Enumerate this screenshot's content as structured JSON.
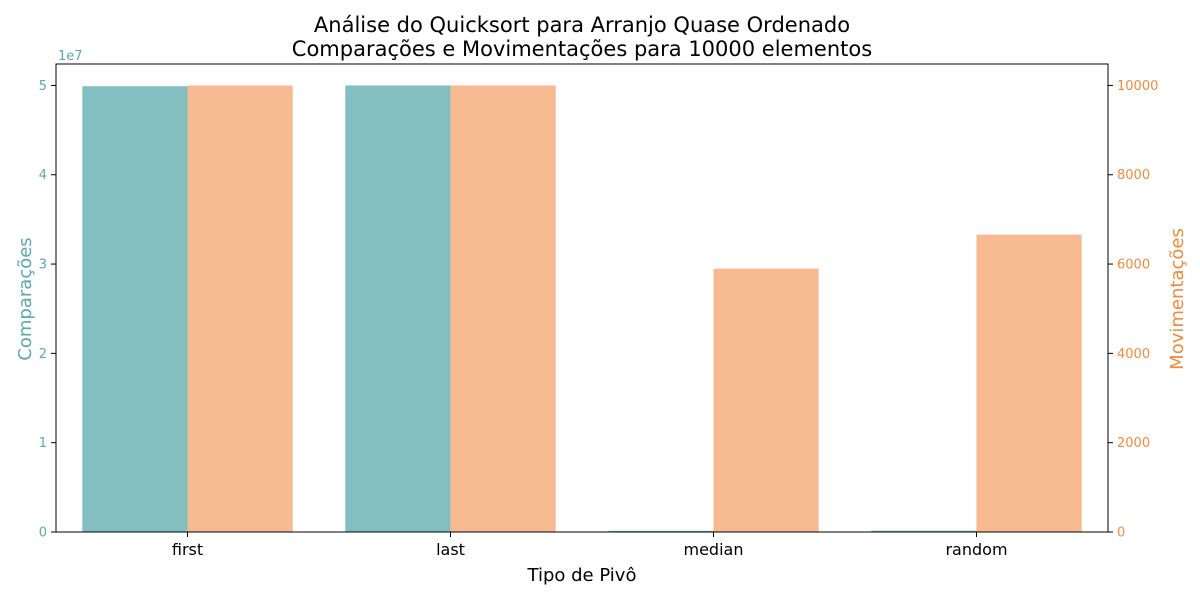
{
  "chart_data": {
    "type": "bar",
    "title": "Análise do Quicksort para Arranjo Quase Ordenado",
    "subtitle": "Comparações e Movimentações para 10000 elementos",
    "xlabel": "Tipo de Pivô",
    "categories": [
      "first",
      "last",
      "median",
      "random"
    ],
    "series": [
      {
        "name": "Comparações",
        "axis": "left",
        "color": "#5aaaab",
        "values": [
          49915000,
          49995000,
          135000,
          155000
        ]
      },
      {
        "name": "Movimentações",
        "axis": "right",
        "color": "#f4a36c",
        "values": [
          9999,
          9999,
          5898,
          6659
        ]
      }
    ],
    "y_left": {
      "label": "Comparações",
      "color": "#5aaaab",
      "ylim": [
        0,
        52400000
      ],
      "ticks": [
        0,
        10000000,
        20000000,
        30000000,
        40000000,
        50000000
      ],
      "tick_labels": [
        "0",
        "1",
        "2",
        "3",
        "4",
        "5"
      ],
      "scale_label": "1e7"
    },
    "y_right": {
      "label": "Movimentações",
      "color": "#f08a3c",
      "ylim": [
        0,
        10480
      ],
      "ticks": [
        0,
        2000,
        4000,
        6000,
        8000,
        10000
      ],
      "tick_labels": [
        "0",
        "2000",
        "4000",
        "6000",
        "8000",
        "10000"
      ]
    },
    "grid": false,
    "legend": "none"
  }
}
